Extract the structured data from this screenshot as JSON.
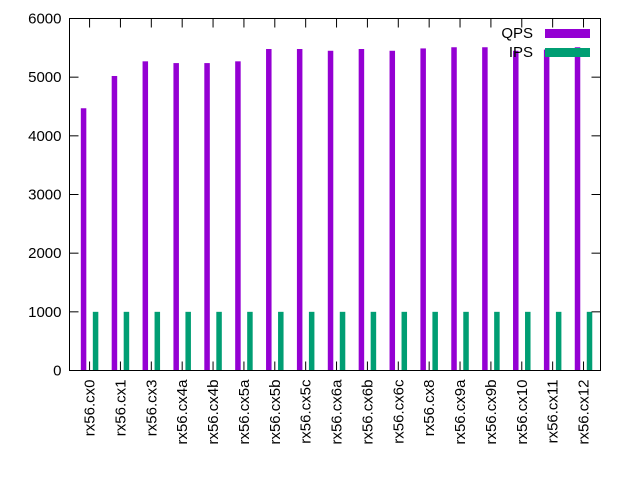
{
  "chart_data": {
    "type": "bar",
    "categories": [
      "rx56.cx0",
      "rx56.cx1",
      "rx56.cx3",
      "rx56.cx4a",
      "rx56.cx4b",
      "rx56.cx5a",
      "rx56.cx5b",
      "rx56.cx5c",
      "rx56.cx6a",
      "rx56.cx6b",
      "rx56.cx6c",
      "rx56.cx8",
      "rx56.cx9a",
      "rx56.cx9b",
      "rx56.cx10",
      "rx56.cx11",
      "rx56.cx12"
    ],
    "series": [
      {
        "name": "QPS",
        "color": "#9400d3",
        "values": [
          4470,
          5020,
          5270,
          5240,
          5240,
          5270,
          5480,
          5480,
          5450,
          5480,
          5450,
          5490,
          5510,
          5510,
          5450,
          5470,
          5510
        ]
      },
      {
        "name": "IPS",
        "color": "#009e73",
        "values": [
          1000,
          1000,
          1000,
          1000,
          1000,
          1000,
          1000,
          1000,
          1000,
          1000,
          1000,
          1000,
          1000,
          1000,
          1000,
          1000,
          1000
        ]
      }
    ],
    "title": "",
    "xlabel": "",
    "ylabel": "",
    "ylim": [
      0,
      6000
    ],
    "yticks": [
      0,
      1000,
      2000,
      3000,
      4000,
      5000,
      6000
    ],
    "grid": false,
    "legend": "top-right"
  }
}
